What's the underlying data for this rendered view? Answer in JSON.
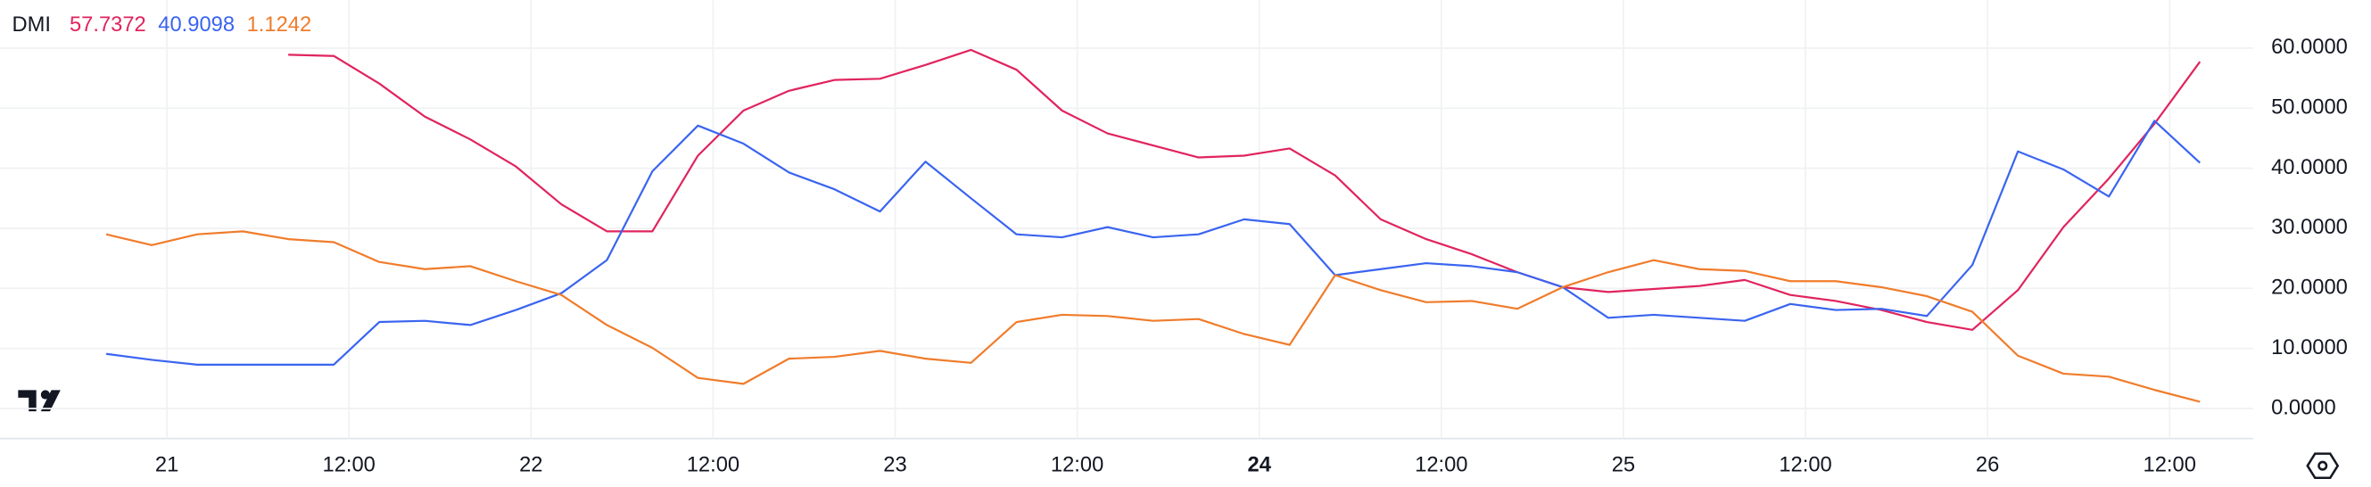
{
  "chart_data": {
    "type": "line",
    "indicator": "DMI",
    "x": [
      20,
      23,
      26,
      29,
      32,
      35,
      38,
      41,
      44,
      47,
      50,
      53,
      56,
      59,
      62,
      65,
      68,
      71,
      74,
      77,
      80,
      83,
      86,
      89,
      92,
      95,
      98,
      101,
      104,
      107,
      110,
      113,
      116,
      119,
      122,
      125,
      128,
      131,
      134,
      137,
      140,
      143,
      146,
      149,
      152,
      155,
      158
    ],
    "xlim": [
      13,
      161.5
    ],
    "xticks": [
      {
        "value": 24,
        "label": "21"
      },
      {
        "value": 36,
        "label": "12:00"
      },
      {
        "value": 48,
        "label": "22"
      },
      {
        "value": 60,
        "label": "12:00"
      },
      {
        "value": 72,
        "label": "23"
      },
      {
        "value": 84,
        "label": "12:00"
      },
      {
        "value": 96,
        "label": "24",
        "bold": true
      },
      {
        "value": 108,
        "label": "12:00"
      },
      {
        "value": 120,
        "label": "25"
      },
      {
        "value": 132,
        "label": "12:00"
      },
      {
        "value": 144,
        "label": "26"
      },
      {
        "value": 156,
        "label": "12:00"
      }
    ],
    "ylim": [
      -5,
      68
    ],
    "yticks": [
      {
        "value": 0,
        "label": "0.0000"
      },
      {
        "value": 10,
        "label": "10.0000"
      },
      {
        "value": 20,
        "label": "20.0000"
      },
      {
        "value": 30,
        "label": "30.0000"
      },
      {
        "value": 40,
        "label": "40.0000"
      },
      {
        "value": 50,
        "label": "50.0000"
      },
      {
        "value": 60,
        "label": "60.0000"
      }
    ],
    "grid": true,
    "series": [
      {
        "label": "57.7372",
        "color": "#e0245e",
        "values": [
          null,
          null,
          null,
          null,
          58.9,
          58.7,
          54.1,
          48.6,
          44.8,
          40.3,
          34.0,
          29.5,
          29.5,
          42.1,
          49.6,
          52.9,
          54.7,
          54.9,
          57.2,
          59.7,
          56.4,
          49.6,
          45.8,
          43.8,
          41.8,
          42.1,
          43.3,
          38.8,
          31.5,
          28.2,
          25.7,
          22.7,
          20.2,
          19.4,
          19.9,
          20.4,
          21.4,
          18.9,
          17.9,
          16.4,
          14.4,
          13.1,
          19.7,
          30.2,
          38.3,
          47.4,
          57.7372
        ]
      },
      {
        "label": "40.9098",
        "color": "#3a64f0",
        "values": [
          9.1,
          8.1,
          7.3,
          7.3,
          7.3,
          7.3,
          14.4,
          14.6,
          13.9,
          16.4,
          19.2,
          24.7,
          39.5,
          47.1,
          44.1,
          39.3,
          36.5,
          32.8,
          41.1,
          35.0,
          29.0,
          28.5,
          30.2,
          28.5,
          29.0,
          31.5,
          30.7,
          22.2,
          23.2,
          24.2,
          23.7,
          22.7,
          20.2,
          15.1,
          15.6,
          15.1,
          14.6,
          17.4,
          16.4,
          16.6,
          15.4,
          23.9,
          42.8,
          39.8,
          35.3,
          47.9,
          40.9098
        ]
      },
      {
        "label": "1.1242",
        "color": "#f07c2b",
        "values": [
          29.0,
          27.2,
          29.0,
          29.5,
          28.2,
          27.7,
          24.4,
          23.2,
          23.7,
          21.2,
          18.9,
          13.9,
          10.1,
          5.1,
          4.1,
          8.3,
          8.6,
          9.6,
          8.3,
          7.6,
          14.4,
          15.6,
          15.4,
          14.6,
          14.9,
          12.4,
          10.6,
          22.2,
          19.7,
          17.7,
          17.9,
          16.6,
          20.2,
          22.7,
          24.7,
          23.2,
          22.9,
          21.2,
          21.2,
          20.2,
          18.7,
          16.1,
          8.8,
          5.8,
          5.3,
          3.1,
          1.1242
        ]
      }
    ]
  }
}
